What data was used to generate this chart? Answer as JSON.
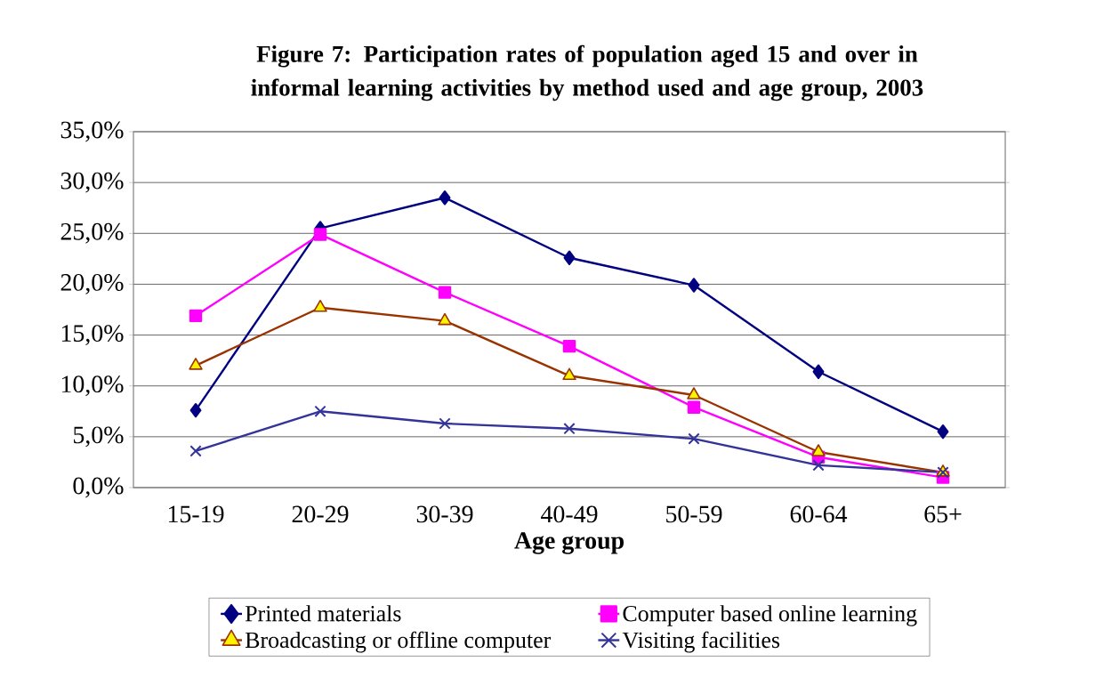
{
  "chart_data": {
    "type": "line",
    "title": "Figure 7: Participation rates of population aged 15 and over in informal learning activities by method used and age group, 2003",
    "xlabel": "Age group",
    "categories": [
      "15-19",
      "20-29",
      "30-39",
      "40-49",
      "50-59",
      "60-64",
      "65+"
    ],
    "series": [
      {
        "name": "Printed materials",
        "color": "#000080",
        "marker": "diamond",
        "values": [
          7.6,
          25.5,
          28.5,
          22.6,
          19.9,
          11.4,
          5.5
        ]
      },
      {
        "name": "Computer based online learning",
        "color": "#ff00ff",
        "marker": "square",
        "values": [
          16.9,
          24.9,
          19.2,
          13.9,
          7.9,
          3.0,
          1.0
        ]
      },
      {
        "name": "Broadcasting or offline computer",
        "color": "#993300",
        "marker": "triangle",
        "values": [
          12.0,
          17.7,
          16.4,
          11.0,
          9.1,
          3.5,
          1.5
        ]
      },
      {
        "name": "Visiting facilities",
        "color": "#333399",
        "marker": "cross",
        "values": [
          3.6,
          7.5,
          6.3,
          5.8,
          4.8,
          2.2,
          1.5
        ]
      }
    ],
    "ylim": [
      0,
      35
    ],
    "yticks": [
      {
        "value": 0,
        "label": "0,0%"
      },
      {
        "value": 5,
        "label": "5,0%"
      },
      {
        "value": 10,
        "label": "10,0%"
      },
      {
        "value": 15,
        "label": "15,0%"
      },
      {
        "value": 20,
        "label": "20,0%"
      },
      {
        "value": 25,
        "label": "25,0%"
      },
      {
        "value": 30,
        "label": "30,0%"
      },
      {
        "value": 35,
        "label": "35,0%"
      }
    ],
    "grid": "y",
    "legend": "bottom",
    "line_style": "solid"
  }
}
